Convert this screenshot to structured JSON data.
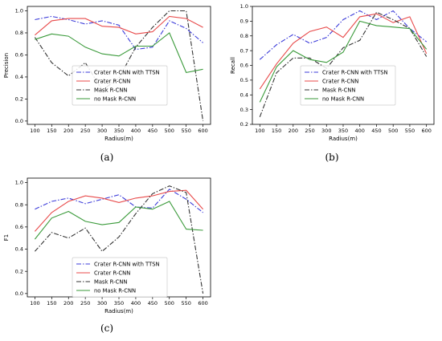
{
  "chart_data": [
    {
      "type": "line",
      "caption": "(a)",
      "xlabel": "Radius(m)",
      "ylabel": "Precision",
      "x": [
        100,
        150,
        200,
        250,
        300,
        350,
        400,
        450,
        500,
        550,
        600
      ],
      "xticks": [
        "100",
        "150",
        "200",
        "250",
        "300",
        "350",
        "400",
        "450",
        "500",
        "550",
        "600"
      ],
      "ylim": [
        -0.03,
        1.04
      ],
      "yticks": [
        0.0,
        0.2,
        0.4,
        0.6,
        0.8,
        1.0
      ],
      "ytick_labels": [
        "0.0",
        "0.2",
        "0.4",
        "0.6",
        "0.8",
        "1.0"
      ],
      "legend_position": "lower-center",
      "series": [
        {
          "name": "Crater R-CNN with TTSN",
          "color": "#3b3bd9",
          "style": "dashdot",
          "values": [
            0.92,
            0.95,
            0.92,
            0.88,
            0.91,
            0.87,
            0.65,
            0.67,
            0.91,
            0.84,
            0.71
          ]
        },
        {
          "name": "Crater R-CNN",
          "color": "#e84a4a",
          "style": "solid",
          "values": [
            0.78,
            0.91,
            0.93,
            0.93,
            0.86,
            0.85,
            0.79,
            0.81,
            0.95,
            0.93,
            0.85
          ]
        },
        {
          "name": "Mask R-CNN",
          "color": "#333333",
          "style": "dashdot",
          "values": [
            0.76,
            0.53,
            0.41,
            0.53,
            0.28,
            0.39,
            0.67,
            0.85,
            1.0,
            1.0,
            0.0
          ]
        },
        {
          "name": "no Mask R-CNN",
          "color": "#3a9a3a",
          "style": "solid",
          "values": [
            0.74,
            0.79,
            0.77,
            0.67,
            0.61,
            0.59,
            0.68,
            0.68,
            0.8,
            0.44,
            0.47
          ]
        }
      ]
    },
    {
      "type": "line",
      "caption": "(b)",
      "xlabel": "Radius(m)",
      "ylabel": "Recall",
      "x": [
        100,
        150,
        200,
        250,
        300,
        350,
        400,
        450,
        500,
        550,
        600
      ],
      "xticks": [
        "100",
        "150",
        "200",
        "250",
        "300",
        "350",
        "400",
        "450",
        "500",
        "550",
        "600"
      ],
      "ylim": [
        0.2,
        1.0
      ],
      "yticks": [
        0.2,
        0.3,
        0.4,
        0.5,
        0.6,
        0.7,
        0.8,
        0.9,
        1.0
      ],
      "ytick_labels": [
        "0.2",
        "0.3",
        "0.4",
        "0.5",
        "0.6",
        "0.7",
        "0.8",
        "0.9",
        "1.0"
      ],
      "legend_position": "lower-center",
      "series": [
        {
          "name": "Crater R-CNN with TTSN",
          "color": "#3b3bd9",
          "style": "dashdot",
          "values": [
            0.64,
            0.74,
            0.81,
            0.75,
            0.79,
            0.91,
            0.97,
            0.91,
            0.97,
            0.85,
            0.76
          ]
        },
        {
          "name": "Crater R-CNN",
          "color": "#e84a4a",
          "style": "solid",
          "values": [
            0.44,
            0.61,
            0.75,
            0.83,
            0.86,
            0.79,
            0.93,
            0.95,
            0.89,
            0.93,
            0.68
          ]
        },
        {
          "name": "Mask R-CNN",
          "color": "#333333",
          "style": "dashdot",
          "values": [
            0.25,
            0.55,
            0.65,
            0.65,
            0.58,
            0.72,
            0.77,
            0.96,
            0.91,
            0.85,
            0.66
          ]
        },
        {
          "name": "no Mask R-CNN",
          "color": "#3a9a3a",
          "style": "solid",
          "values": [
            0.35,
            0.59,
            0.7,
            0.64,
            0.62,
            0.69,
            0.9,
            0.87,
            0.86,
            0.85,
            0.71
          ]
        }
      ]
    },
    {
      "type": "line",
      "caption": "(c)",
      "xlabel": "Radius(m)",
      "ylabel": "F1",
      "x": [
        100,
        150,
        200,
        250,
        300,
        350,
        400,
        450,
        500,
        550,
        600
      ],
      "xticks": [
        "100",
        "150",
        "200",
        "250",
        "300",
        "350",
        "400",
        "450",
        "500",
        "550",
        "600"
      ],
      "ylim": [
        -0.03,
        1.04
      ],
      "yticks": [
        0.0,
        0.2,
        0.4,
        0.6,
        0.8,
        1.0
      ],
      "ytick_labels": [
        "0.0",
        "0.2",
        "0.4",
        "0.6",
        "0.8",
        "1.0"
      ],
      "legend_position": "lower-center",
      "series": [
        {
          "name": "Crater R-CNN with TTSN",
          "color": "#3b3bd9",
          "style": "dashdot",
          "values": [
            0.76,
            0.83,
            0.86,
            0.81,
            0.85,
            0.89,
            0.78,
            0.77,
            0.94,
            0.85,
            0.73
          ]
        },
        {
          "name": "Crater R-CNN",
          "color": "#e84a4a",
          "style": "solid",
          "values": [
            0.56,
            0.73,
            0.83,
            0.88,
            0.86,
            0.82,
            0.86,
            0.88,
            0.92,
            0.93,
            0.76
          ]
        },
        {
          "name": "Mask R-CNN",
          "color": "#333333",
          "style": "dashdot",
          "values": [
            0.38,
            0.55,
            0.5,
            0.59,
            0.38,
            0.51,
            0.72,
            0.9,
            0.97,
            0.91,
            0.0
          ]
        },
        {
          "name": "no Mask R-CNN",
          "color": "#3a9a3a",
          "style": "solid",
          "values": [
            0.49,
            0.68,
            0.74,
            0.65,
            0.62,
            0.64,
            0.78,
            0.76,
            0.83,
            0.58,
            0.57
          ]
        }
      ]
    }
  ]
}
